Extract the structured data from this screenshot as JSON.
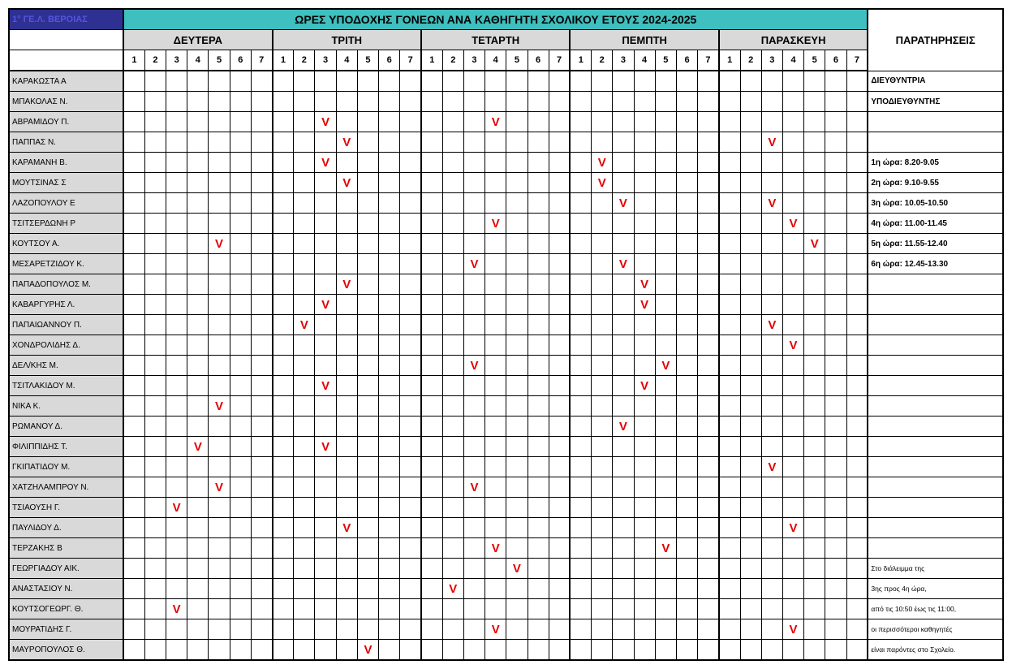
{
  "school": "1° ΓΕ.Λ. ΒΕΡΟΙΑΣ",
  "title": "ΩΡΕΣ ΥΠΟΔΟΧΗΣ ΓΟΝΕΩΝ ΑΝΑ ΚΑΘΗΓΗΤΗ ΣΧΟΛΙΚΟΥ ΕΤΟΥΣ 2024-2025",
  "notes_header": "ΠΑΡΑΤΗΡΗΣΕΙΣ",
  "days": [
    "ΔΕΥΤΕΡΑ",
    "ΤΡΙΤΗ",
    "ΤΕΤΑΡΤΗ",
    "ΠΕΜΠΤΗ",
    "ΠΑΡΑΣΚΕΥΗ"
  ],
  "periods": [
    "1",
    "2",
    "3",
    "4",
    "5",
    "6",
    "7"
  ],
  "mark": "V",
  "colors": {
    "header_bg": "#3fbfbf",
    "day_bg": "#d9d9d9",
    "name_bg": "#d9d9d9",
    "school_bg": "#2e3192",
    "mark_color": "#e60000",
    "border": "#000000"
  },
  "teachers": [
    {
      "name": "ΚΑΡΑΚΩΣΤΑ Α",
      "slots": [],
      "note": "ΔΙΕΥΘΥΝΤΡΙΑ",
      "bold": true
    },
    {
      "name": "ΜΠΑΚΟΛΑΣ Ν.",
      "slots": [],
      "note": "ΥΠΟΔΙΕΥΘΥΝΤΗΣ",
      "bold": true
    },
    {
      "name": "ΑΒΡΑΜΙΔΟΥ Π.",
      "slots": [
        [
          1,
          3
        ],
        [
          2,
          4
        ]
      ],
      "note": ""
    },
    {
      "name": "ΠΑΠΠΑΣ Ν.",
      "slots": [
        [
          1,
          4
        ],
        [
          4,
          3
        ]
      ],
      "note": ""
    },
    {
      "name": "ΚΑΡΑΜΑΝΗ Β.",
      "slots": [
        [
          1,
          3
        ],
        [
          3,
          2
        ]
      ],
      "note": "1η ώρα: 8.20-9.05",
      "bold": true
    },
    {
      "name": "ΜΟΥΤΣΙΝΑΣ Σ",
      "slots": [
        [
          1,
          4
        ],
        [
          3,
          2
        ]
      ],
      "note": "2η ώρα: 9.10-9.55",
      "bold": true
    },
    {
      "name": "ΛΑΖΟΠΟΥΛΟΥ Ε",
      "slots": [
        [
          3,
          3
        ],
        [
          4,
          3
        ]
      ],
      "note": "3η ώρα: 10.05-10.50",
      "bold": true
    },
    {
      "name": "ΤΣΙΤΣΕΡΔΩΝΗ Ρ",
      "slots": [
        [
          2,
          4
        ],
        [
          4,
          4
        ]
      ],
      "note": "4η ώρα: 11.00-11.45",
      "bold": true
    },
    {
      "name": "ΚΟΥΤΣΟΥ Α.",
      "slots": [
        [
          0,
          5
        ],
        [
          4,
          5
        ]
      ],
      "note": "5η ώρα: 11.55-12.40",
      "bold": true
    },
    {
      "name": "ΜΕΣΑΡΕΤΖΙΔΟΥ Κ.",
      "slots": [
        [
          2,
          3
        ],
        [
          3,
          3
        ]
      ],
      "note": "6η ώρα: 12.45-13.30",
      "bold": true
    },
    {
      "name": "ΠΑΠΑΔΟΠΟΥΛΟΣ Μ.",
      "slots": [
        [
          1,
          4
        ],
        [
          3,
          4
        ]
      ],
      "note": ""
    },
    {
      "name": "ΚΑΒΑΡΓΥΡΗΣ Λ.",
      "slots": [
        [
          1,
          3
        ],
        [
          3,
          4
        ]
      ],
      "note": ""
    },
    {
      "name": "ΠΑΠΑΙΩΑΝΝΟΥ Π.",
      "slots": [
        [
          1,
          2
        ],
        [
          4,
          3
        ]
      ],
      "note": ""
    },
    {
      "name": "ΧΟΝΔΡΟΛΙΔΗΣ Δ.",
      "slots": [
        [
          4,
          4
        ]
      ],
      "note": ""
    },
    {
      "name": "ΔΕΛ/ΚΗΣ Μ.",
      "slots": [
        [
          2,
          3
        ],
        [
          3,
          5
        ]
      ],
      "note": ""
    },
    {
      "name": "ΤΣΙΤΛΑΚΙΔΟΥ Μ.",
      "slots": [
        [
          1,
          3
        ],
        [
          3,
          4
        ]
      ],
      "note": ""
    },
    {
      "name": "ΝΙΚΑ Κ.",
      "slots": [
        [
          0,
          5
        ]
      ],
      "note": ""
    },
    {
      "name": "ΡΩΜΑΝΟΥ Δ.",
      "slots": [
        [
          3,
          3
        ]
      ],
      "note": ""
    },
    {
      "name": "ΦΙΛΙΠΠΙΔΗΣ Τ.",
      "slots": [
        [
          0,
          4
        ],
        [
          1,
          3
        ]
      ],
      "note": ""
    },
    {
      "name": "ΓΚΙΠΑΤΙΔΟΥ Μ.",
      "slots": [
        [
          4,
          3
        ]
      ],
      "note": ""
    },
    {
      "name": "ΧΑΤΖΗΛΑΜΠΡΟΥ Ν.",
      "slots": [
        [
          0,
          5
        ],
        [
          2,
          3
        ]
      ],
      "note": ""
    },
    {
      "name": "ΤΣΙΑΟΥΣΗ Γ.",
      "slots": [
        [
          0,
          3
        ]
      ],
      "note": ""
    },
    {
      "name": "ΠΑΥΛΙΔΟΥ Δ.",
      "slots": [
        [
          1,
          4
        ],
        [
          4,
          4
        ]
      ],
      "note": ""
    },
    {
      "name": "ΤΕΡΖΑΚΗΣ Β",
      "slots": [
        [
          2,
          4
        ],
        [
          3,
          5
        ]
      ],
      "note": ""
    },
    {
      "name": "ΓΕΩΡΓΙΑΔΟΥ ΑΙΚ.",
      "slots": [
        [
          2,
          5
        ]
      ],
      "note": "Στο διάλειμμα της",
      "small": true
    },
    {
      "name": "ΑΝΑΣΤΑΣΙΟΥ Ν.",
      "slots": [
        [
          2,
          2
        ]
      ],
      "note": "3ης προς 4η ώρα,",
      "small": true
    },
    {
      "name": "ΚΟΥΤΣΟΓΕΩΡΓ. Θ.",
      "slots": [
        [
          0,
          3
        ]
      ],
      "note": "από τις 10:50 έως τις 11:00,",
      "small": true
    },
    {
      "name": "ΜΟΥΡΑΤΙΔΗΣ Γ.",
      "slots": [
        [
          2,
          4
        ],
        [
          4,
          4
        ]
      ],
      "note": " οι περισσότεροι καθηγητές",
      "small": true
    },
    {
      "name": "ΜΑΥΡΟΠΟΥΛΟΣ Θ.",
      "slots": [
        [
          1,
          5
        ]
      ],
      "note": "είναι παρόντες στο Σχολείο.",
      "small": true
    }
  ]
}
